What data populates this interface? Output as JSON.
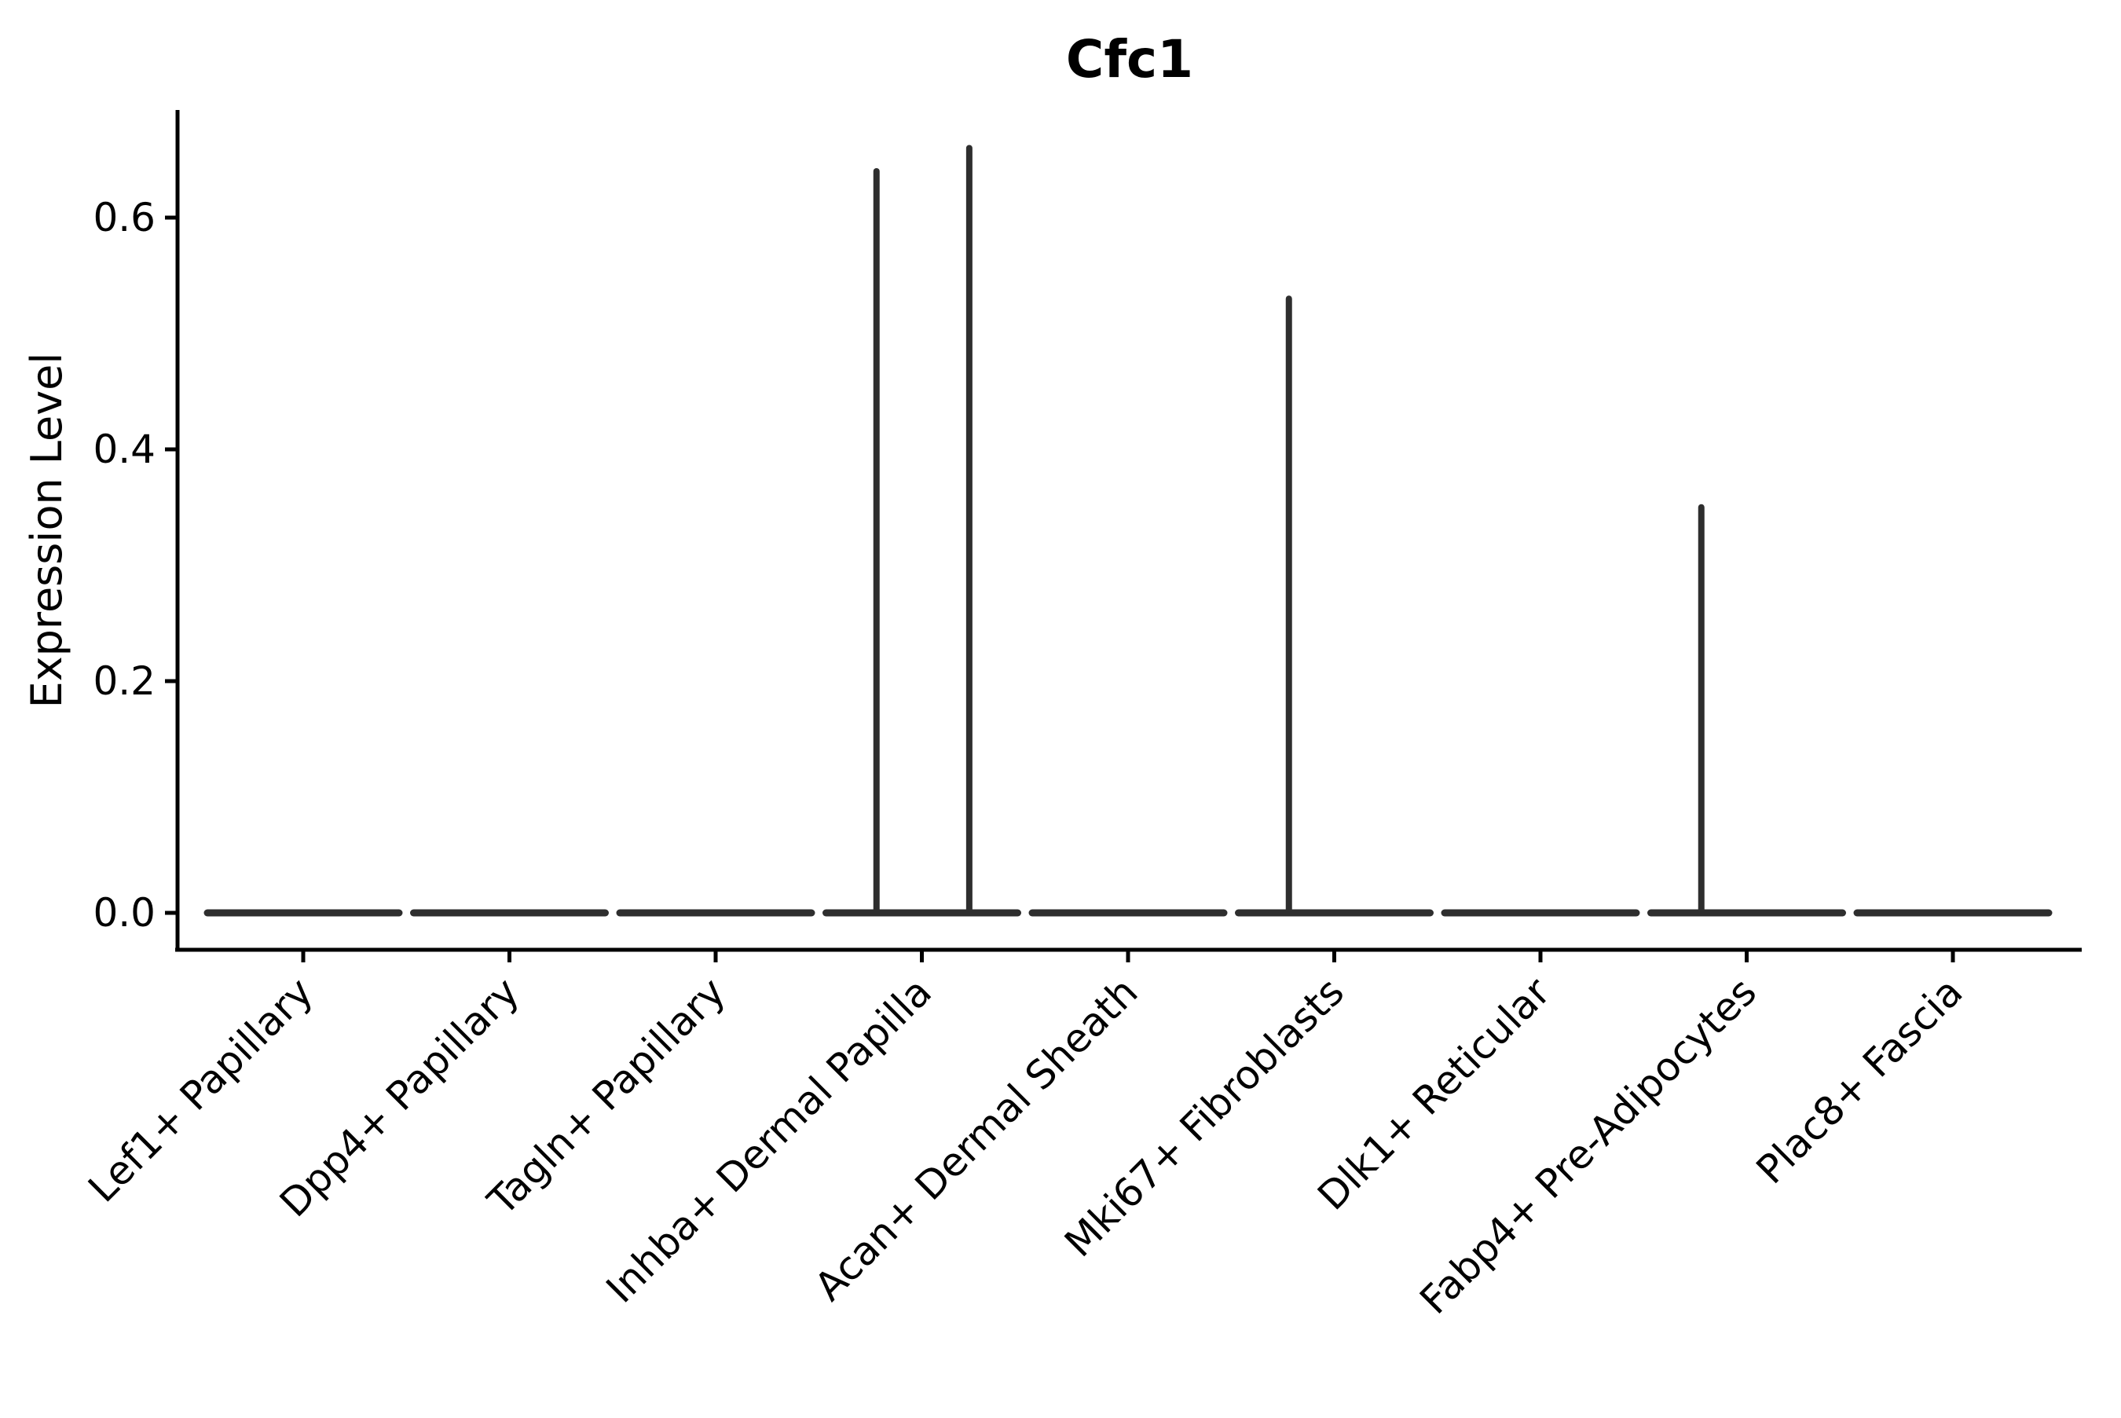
{
  "chart_data": {
    "type": "violin",
    "title": "Cfc1",
    "xlabel": "",
    "ylabel": "Expression Level",
    "ylim": [
      0,
      0.69
    ],
    "yticks": [
      "0.0",
      "0.2",
      "0.4",
      "0.6"
    ],
    "ytick_values": [
      0.0,
      0.2,
      0.4,
      0.6
    ],
    "grid": false,
    "legend": "none",
    "categories": [
      "Lef1+ Papillary",
      "Dpp4+ Papillary",
      "Tagln+ Papillary",
      "Inhba+ Dermal Papilla",
      "Acan+ Dermal Sheath",
      "Mki67+ Fibroblasts",
      "Dlk1+ Reticular",
      "Fabp4+ Pre-Adipocytes",
      "Plac8+ Fascia"
    ],
    "violins": [
      {
        "category": "Lef1+ Papillary",
        "base_value": 0.0,
        "spikes": []
      },
      {
        "category": "Dpp4+ Papillary",
        "base_value": 0.0,
        "spikes": []
      },
      {
        "category": "Tagln+ Papillary",
        "base_value": 0.0,
        "spikes": []
      },
      {
        "category": "Inhba+ Dermal Papilla",
        "base_value": 0.0,
        "spikes": [
          {
            "value": 0.64,
            "offset": -0.22
          },
          {
            "value": 0.66,
            "offset": 0.23
          }
        ]
      },
      {
        "category": "Acan+ Dermal Sheath",
        "base_value": 0.0,
        "spikes": []
      },
      {
        "category": "Mki67+ Fibroblasts",
        "base_value": 0.0,
        "spikes": [
          {
            "value": 0.53,
            "offset": -0.22
          }
        ]
      },
      {
        "category": "Dlk1+ Reticular",
        "base_value": 0.0,
        "spikes": []
      },
      {
        "category": "Fabp4+ Pre-Adipocytes",
        "base_value": 0.0,
        "spikes": [
          {
            "value": 0.35,
            "offset": -0.22
          }
        ]
      },
      {
        "category": "Plac8+ Fascia",
        "base_value": 0.0,
        "spikes": []
      }
    ],
    "colors": {
      "violin_stroke": "#2e2e2e",
      "axis": "#000000",
      "text": "#000000",
      "background": "#ffffff"
    }
  }
}
